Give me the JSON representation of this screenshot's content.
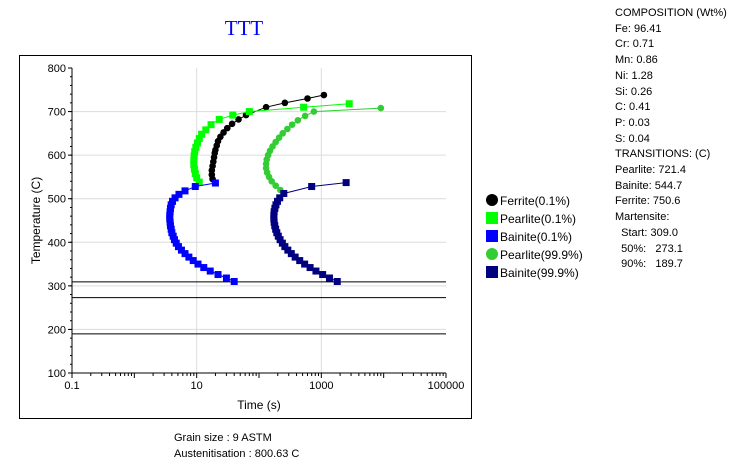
{
  "title": "TTT",
  "chart_data": {
    "type": "line",
    "title": "TTT",
    "xlabel": "Time (s)",
    "ylabel": "Temperature (C)",
    "x_scale": "log",
    "xlim": [
      0.1,
      100000
    ],
    "ylim": [
      100,
      800
    ],
    "x_ticks": [
      "0.1",
      "10",
      "1000",
      "100000"
    ],
    "y_ticks": [
      "100",
      "200",
      "300",
      "400",
      "500",
      "600",
      "700",
      "800"
    ],
    "grid": true,
    "legend_position": "right",
    "hlines": [
      309.0,
      273.1,
      189.7
    ],
    "series": [
      {
        "name": "Ferrite(0.1%)",
        "marker": "circle",
        "color": "#000000",
        "points": [
          [
            18,
            545
          ],
          [
            17.5,
            555
          ],
          [
            17.5,
            565
          ],
          [
            18,
            575
          ],
          [
            18.5,
            585
          ],
          [
            19,
            595
          ],
          [
            19.5,
            605
          ],
          [
            20,
            612
          ],
          [
            21,
            622
          ],
          [
            22,
            632
          ],
          [
            24,
            642
          ],
          [
            27,
            652
          ],
          [
            31,
            662
          ],
          [
            37,
            672
          ],
          [
            47,
            682
          ],
          [
            62,
            692
          ],
          [
            130,
            710
          ],
          [
            260,
            720
          ],
          [
            600,
            730
          ],
          [
            1100,
            738
          ]
        ]
      },
      {
        "name": "Pearlite(0.1%)",
        "marker": "square",
        "color": "#00ff00",
        "points": [
          [
            11,
            538
          ],
          [
            10,
            548
          ],
          [
            9.5,
            558
          ],
          [
            9.2,
            568
          ],
          [
            9,
            578
          ],
          [
            9,
            588
          ],
          [
            9.1,
            598
          ],
          [
            9.3,
            608
          ],
          [
            9.7,
            618
          ],
          [
            10.3,
            628
          ],
          [
            11,
            638
          ],
          [
            12,
            648
          ],
          [
            14,
            658
          ],
          [
            17,
            670
          ],
          [
            23,
            682
          ],
          [
            38,
            692
          ],
          [
            70,
            700
          ],
          [
            520,
            710
          ],
          [
            2800,
            718
          ]
        ]
      },
      {
        "name": "Bainite(0.1%)",
        "marker": "square",
        "color": "#0000ff",
        "points": [
          [
            40,
            310
          ],
          [
            30,
            318
          ],
          [
            22,
            326
          ],
          [
            16.5,
            334
          ],
          [
            13,
            342
          ],
          [
            10.5,
            350
          ],
          [
            8.8,
            358
          ],
          [
            7.5,
            366
          ],
          [
            6.5,
            374
          ],
          [
            5.7,
            382
          ],
          [
            5.1,
            390
          ],
          [
            4.7,
            398
          ],
          [
            4.4,
            406
          ],
          [
            4.2,
            414
          ],
          [
            4,
            422
          ],
          [
            3.9,
            430
          ],
          [
            3.8,
            438
          ],
          [
            3.75,
            446
          ],
          [
            3.7,
            454
          ],
          [
            3.7,
            462
          ],
          [
            3.75,
            470
          ],
          [
            3.8,
            478
          ],
          [
            3.9,
            486
          ],
          [
            4.1,
            494
          ],
          [
            4.5,
            502
          ],
          [
            5.2,
            510
          ],
          [
            6.5,
            518
          ],
          [
            9.5,
            528
          ],
          [
            20,
            536
          ]
        ]
      },
      {
        "name": "Pearlite(99.9%)",
        "marker": "circle",
        "color": "#33cc33",
        "points": [
          [
            220,
            520
          ],
          [
            185,
            530
          ],
          [
            160,
            540
          ],
          [
            145,
            550
          ],
          [
            135,
            560
          ],
          [
            130,
            570
          ],
          [
            130,
            580
          ],
          [
            133,
            590
          ],
          [
            140,
            600
          ],
          [
            150,
            610
          ],
          [
            165,
            620
          ],
          [
            185,
            630
          ],
          [
            210,
            640
          ],
          [
            240,
            650
          ],
          [
            285,
            660
          ],
          [
            340,
            670
          ],
          [
            420,
            680
          ],
          [
            550,
            690
          ],
          [
            760,
            700
          ],
          [
            9000,
            708
          ]
        ]
      },
      {
        "name": "Bainite(99.9%)",
        "marker": "square",
        "color": "#000080",
        "points": [
          [
            1800,
            310
          ],
          [
            1350,
            318
          ],
          [
            1050,
            326
          ],
          [
            820,
            334
          ],
          [
            660,
            342
          ],
          [
            540,
            350
          ],
          [
            450,
            358
          ],
          [
            380,
            366
          ],
          [
            330,
            374
          ],
          [
            290,
            382
          ],
          [
            260,
            390
          ],
          [
            237,
            398
          ],
          [
            218,
            406
          ],
          [
            204,
            414
          ],
          [
            193,
            422
          ],
          [
            185,
            430
          ],
          [
            179,
            438
          ],
          [
            175,
            446
          ],
          [
            173,
            454
          ],
          [
            173,
            462
          ],
          [
            175,
            470
          ],
          [
            180,
            478
          ],
          [
            187,
            486
          ],
          [
            198,
            494
          ],
          [
            215,
            502
          ],
          [
            250,
            512
          ],
          [
            700,
            528
          ],
          [
            2500,
            537
          ]
        ]
      }
    ]
  },
  "info": {
    "composition_title": "COMPOSITION (Wt%)",
    "composition": [
      "Fe: 96.41",
      "Cr: 0.71",
      "Mn: 0.86",
      "Ni: 1.28",
      "Si: 0.26",
      "C: 0.41",
      "P: 0.03",
      "S: 0.04"
    ],
    "transitions_title": "TRANSITIONS: (C)",
    "transitions": [
      "Pearlite: 721.4",
      "Bainite: 544.7",
      "Ferrite: 750.6"
    ],
    "martensite_title": "Martensite:",
    "martensite": [
      "  Start: 309.0",
      "  50%:   273.1",
      "  90%:   189.7"
    ]
  },
  "footer": {
    "grain_size": "Grain size : 9 ASTM",
    "austenitisation": "Austenitisation : 800.63 C"
  }
}
